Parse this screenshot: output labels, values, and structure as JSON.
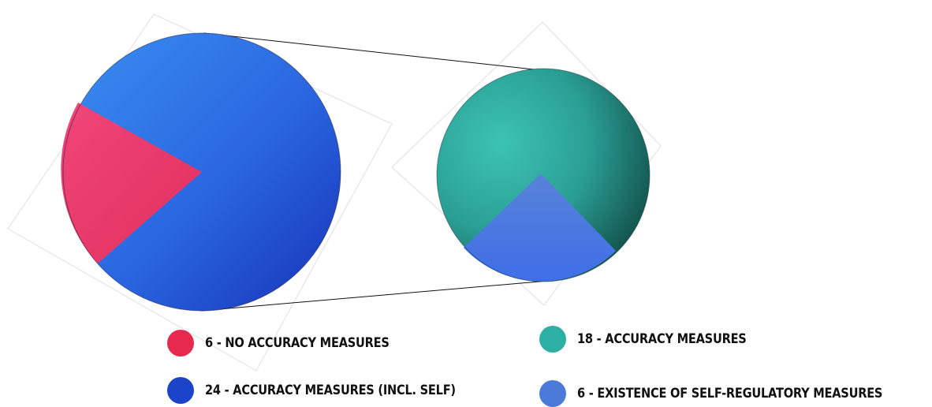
{
  "chart_data": {
    "type": "pie",
    "charts": [
      {
        "slices": [
          {
            "label": "6 - NO ACCURACY MEASURES",
            "value": 6,
            "color": "#e8294f"
          },
          {
            "label": "24 - ACCURACY MEASURES (INCL. SELF)",
            "value": 24,
            "color": "#1c44c9"
          }
        ]
      },
      {
        "slices": [
          {
            "label": "18 - ACCURACY MEASURES",
            "value": 18,
            "color": "#2eafa4"
          },
          {
            "label": "6 - EXISTENCE OF SELF-REGULATORY MEASURES",
            "value": 6,
            "color": "#4c7ad8"
          }
        ]
      }
    ],
    "legend": [
      {
        "label": "6 - NO ACCURACY MEASURES",
        "color": "#e8294f"
      },
      {
        "label": "24 - ACCURACY MEASURES (INCL. SELF)",
        "color": "#1c44c9"
      },
      {
        "label": "18 - ACCURACY MEASURES",
        "color": "#2eafa4"
      },
      {
        "label": "6 - EXISTENCE OF SELF-REGULATORY MEASURES",
        "color": "#4c7ad8"
      }
    ],
    "legend_position": "bottom"
  }
}
